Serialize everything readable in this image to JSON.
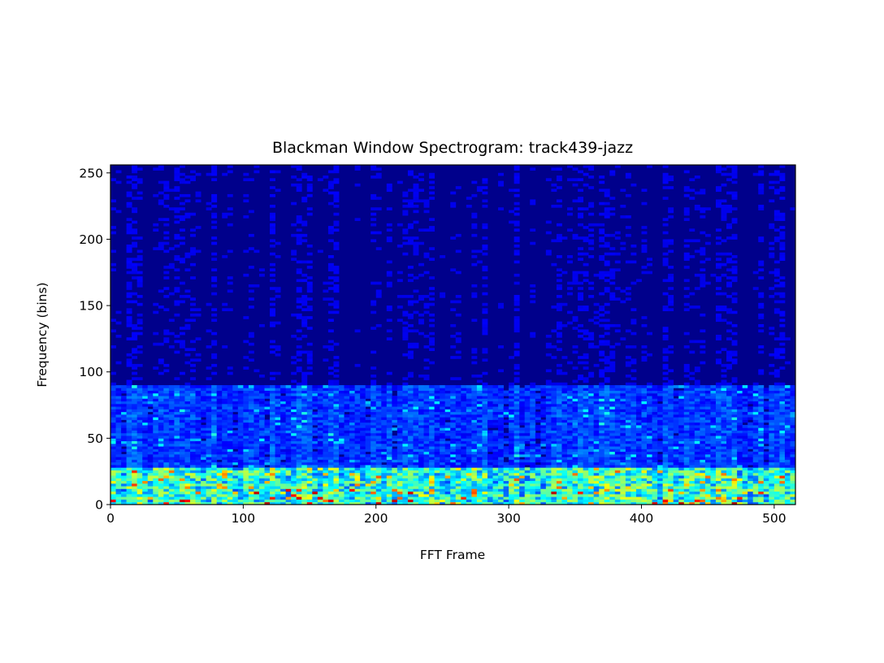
{
  "chart_data": {
    "type": "heatmap",
    "title": "Blackman Window Spectrogram: track439-jazz",
    "xlabel": "FFT Frame",
    "ylabel": "Frequency (bins)",
    "xlim": [
      0,
      516
    ],
    "ylim": [
      0,
      256
    ],
    "x_ticks": [
      0,
      100,
      200,
      300,
      400,
      500
    ],
    "y_ticks": [
      0,
      50,
      100,
      150,
      200,
      250
    ],
    "colormap": "jet",
    "background_color": "#00008b",
    "grid": false,
    "legend": "none",
    "description_of_energy": {
      "strong_band_bins": [
        0,
        28
      ],
      "moderate_band_bins": [
        28,
        90
      ],
      "weak_band_bins": [
        90,
        256
      ]
    }
  }
}
